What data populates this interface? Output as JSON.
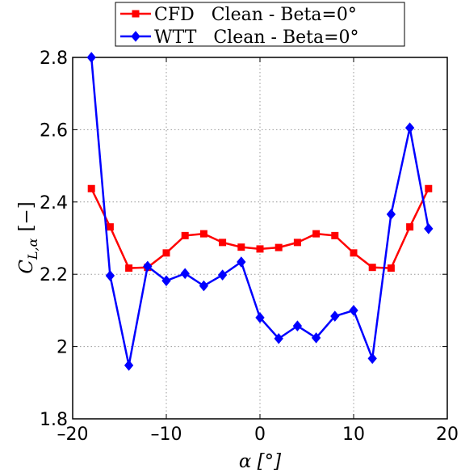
{
  "chart_data": {
    "type": "line",
    "title": "",
    "xlabel": "α [°]",
    "ylabel_main": "C",
    "ylabel_sub": "L,α",
    "ylabel_unit": "[−]",
    "xlim": [
      -20,
      20
    ],
    "ylim": [
      1.8,
      2.8
    ],
    "xticks": [
      -20,
      -10,
      0,
      10,
      20
    ],
    "xtick_labels": [
      "–20",
      "–10",
      "0",
      "10",
      "20"
    ],
    "yticks": [
      1.8,
      2,
      2.2,
      2.4,
      2.6,
      2.8
    ],
    "ytick_labels": [
      "1.8",
      "2",
      "2.2",
      "2.4",
      "2.6",
      "2.8"
    ],
    "grid": true,
    "legend_position": "top-center",
    "series": [
      {
        "name": "CFD   Clean - Beta=0°",
        "color": "#ff0000",
        "marker": "square",
        "x": [
          -18,
          -16,
          -14,
          -12,
          -10,
          -8,
          -6,
          -4,
          -2,
          0,
          2,
          4,
          6,
          8,
          10,
          12,
          14,
          16,
          18
        ],
        "y": [
          2.437,
          2.331,
          2.217,
          2.219,
          2.259,
          2.307,
          2.312,
          2.288,
          2.275,
          2.27,
          2.274,
          2.288,
          2.312,
          2.307,
          2.259,
          2.219,
          2.217,
          2.331,
          2.437
        ]
      },
      {
        "name": "WTT   Clean - Beta=0°",
        "color": "#0000ff",
        "marker": "diamond",
        "x": [
          -18,
          -16,
          -14,
          -12,
          -10,
          -8,
          -6,
          -4,
          -2,
          0,
          2,
          4,
          6,
          8,
          10,
          12,
          14,
          16,
          18
        ],
        "y": [
          2.8,
          2.196,
          1.948,
          2.222,
          2.182,
          2.202,
          2.168,
          2.198,
          2.234,
          2.08,
          2.022,
          2.057,
          2.024,
          2.084,
          2.1,
          1.967,
          2.366,
          2.605,
          2.326
        ]
      }
    ]
  }
}
